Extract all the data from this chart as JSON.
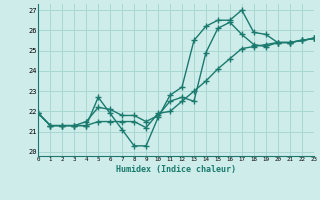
{
  "xlabel": "Humidex (Indice chaleur)",
  "xlim": [
    0,
    23
  ],
  "ylim": [
    19.8,
    27.3
  ],
  "yticks": [
    20,
    21,
    22,
    23,
    24,
    25,
    26,
    27
  ],
  "xticks": [
    0,
    1,
    2,
    3,
    4,
    5,
    6,
    7,
    8,
    9,
    10,
    11,
    12,
    13,
    14,
    15,
    16,
    17,
    18,
    19,
    20,
    21,
    22,
    23
  ],
  "background_color": "#ceecea",
  "grid_color": "#a8d8d4",
  "line_color": "#1a7a6e",
  "line_width": 1.0,
  "marker": "+",
  "marker_size": 4.0,
  "series": [
    [
      21.9,
      21.3,
      21.3,
      21.3,
      21.3,
      22.7,
      21.9,
      21.1,
      20.3,
      20.3,
      21.7,
      22.8,
      23.2,
      25.5,
      26.2,
      26.5,
      26.5,
      27.0,
      25.9,
      25.8,
      25.4,
      25.4,
      25.5,
      25.6
    ],
    [
      21.9,
      21.3,
      21.3,
      21.3,
      21.5,
      22.2,
      22.1,
      21.8,
      21.8,
      21.5,
      21.8,
      22.5,
      22.7,
      22.5,
      24.9,
      26.1,
      26.4,
      25.8,
      25.3,
      25.2,
      25.4,
      25.4,
      25.5,
      25.6
    ],
    [
      21.9,
      21.3,
      21.3,
      21.3,
      21.3,
      21.5,
      21.5,
      21.5,
      21.5,
      21.2,
      21.9,
      22.0,
      22.5,
      23.0,
      23.5,
      24.1,
      24.6,
      25.1,
      25.2,
      25.3,
      25.4,
      25.4,
      25.5,
      25.6
    ]
  ]
}
